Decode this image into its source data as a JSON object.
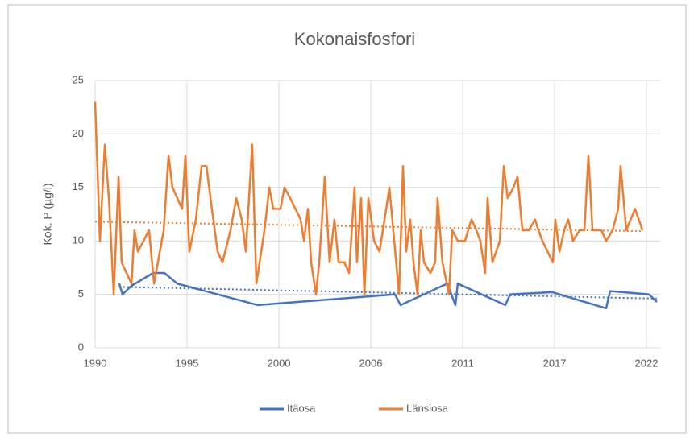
{
  "chart_data": {
    "type": "line",
    "title": "Kokonaisfosfori",
    "y_label": "Kok. P (µg/l)",
    "xlim": [
      1990,
      2022.8
    ],
    "xticks": [
      1990,
      {
        "value": 1995.33,
        "label": "1995"
      },
      {
        "value": 2000.67,
        "label": "2000"
      },
      2006,
      {
        "value": 2011.33,
        "label": "2011"
      },
      {
        "value": 2016.67,
        "label": "2017"
      },
      2022
    ],
    "ylim": [
      0,
      25
    ],
    "yticks": [
      0,
      5,
      10,
      15,
      20,
      25
    ],
    "grid": true,
    "legend": "bottom",
    "series": [
      {
        "name": "Itäosa",
        "color": "#4472c4",
        "x": [
          1991.4,
          1991.59,
          1992.11,
          1993.37,
          1994.02,
          1994.77,
          1995.24,
          1999.45,
          2007.4,
          2007.73,
          2010.44,
          2010.91,
          2011.05,
          2013.81,
          2014.09,
          2016.53,
          2019.66,
          2019.89,
          2022.14,
          2022.61
        ],
        "values": [
          6,
          5,
          5.8,
          7,
          7,
          6,
          5.8,
          4,
          5,
          4,
          6,
          4,
          6,
          4,
          5,
          5.2,
          3.7,
          5.3,
          5,
          4.3
        ],
        "trend": {
          "x": [
            1991.4,
            2022.6
          ],
          "values": [
            5.7,
            4.6
          ]
        }
      },
      {
        "name": "Länsiosa",
        "color": "#ed7d31",
        "x": [
          1990.0,
          1990.28,
          1990.56,
          1990.8,
          1991.08,
          1991.36,
          1991.54,
          1992.11,
          1992.29,
          1992.48,
          1992.81,
          1993.13,
          1993.42,
          1993.98,
          1994.26,
          1994.49,
          1995.05,
          1995.24,
          1995.47,
          1995.85,
          1996.18,
          1996.46,
          1996.78,
          1997.11,
          1997.39,
          1997.86,
          1998.19,
          1998.51,
          1998.75,
          1999.12,
          1999.36,
          1999.83,
          2000.11,
          2000.34,
          2000.76,
          2000.99,
          2001.32,
          2001.93,
          2002.12,
          2002.35,
          2002.54,
          2002.82,
          2003.01,
          2003.33,
          2003.61,
          2003.89,
          2004.13,
          2004.46,
          2004.74,
          2005.06,
          2005.2,
          2005.44,
          2005.63,
          2005.86,
          2006.19,
          2006.51,
          2006.8,
          2007.08,
          2007.36,
          2007.64,
          2007.87,
          2008.06,
          2008.29,
          2008.48,
          2008.71,
          2008.9,
          2009.09,
          2009.46,
          2009.74,
          2009.88,
          2010.16,
          2010.54,
          2010.73,
          2011.05,
          2011.47,
          2011.85,
          2012.13,
          2012.36,
          2012.64,
          2012.78,
          2013.06,
          2013.49,
          2013.72,
          2013.95,
          2014.28,
          2014.52,
          2014.8,
          2015.17,
          2015.54,
          2015.73,
          2015.96,
          2016.57,
          2016.71,
          2016.95,
          2017.23,
          2017.46,
          2017.74,
          2018.12,
          2018.4,
          2018.63,
          2018.87,
          2019.38,
          2019.66,
          2020.04,
          2020.36,
          2020.5,
          2020.83,
          2021.34,
          2021.77
        ],
        "values": [
          23,
          10,
          19,
          14,
          5,
          16,
          8,
          6,
          11,
          9,
          10,
          11,
          6,
          11,
          18,
          15,
          13,
          18,
          9,
          12,
          17,
          17,
          13,
          9,
          8,
          11,
          14,
          12,
          9,
          19,
          6,
          11,
          15,
          13,
          13,
          15,
          14,
          12,
          10,
          13,
          8,
          5,
          8,
          16,
          8,
          12,
          8,
          8,
          7,
          15,
          8,
          14,
          5,
          14,
          10,
          9,
          12,
          15,
          10,
          5,
          17,
          9,
          12,
          8,
          5,
          11,
          8,
          7,
          8,
          14,
          8,
          5,
          11,
          10,
          10,
          12,
          11,
          10,
          7,
          14,
          8,
          10,
          17,
          14,
          15,
          16,
          11,
          11,
          12,
          11,
          10,
          8,
          12,
          9,
          11,
          12,
          10,
          11,
          11,
          18,
          11,
          11,
          10,
          11,
          13,
          17,
          11,
          13,
          11
        ],
        "trend": {
          "x": [
            1990,
            2021.8
          ],
          "values": [
            11.8,
            10.9
          ]
        }
      }
    ]
  }
}
